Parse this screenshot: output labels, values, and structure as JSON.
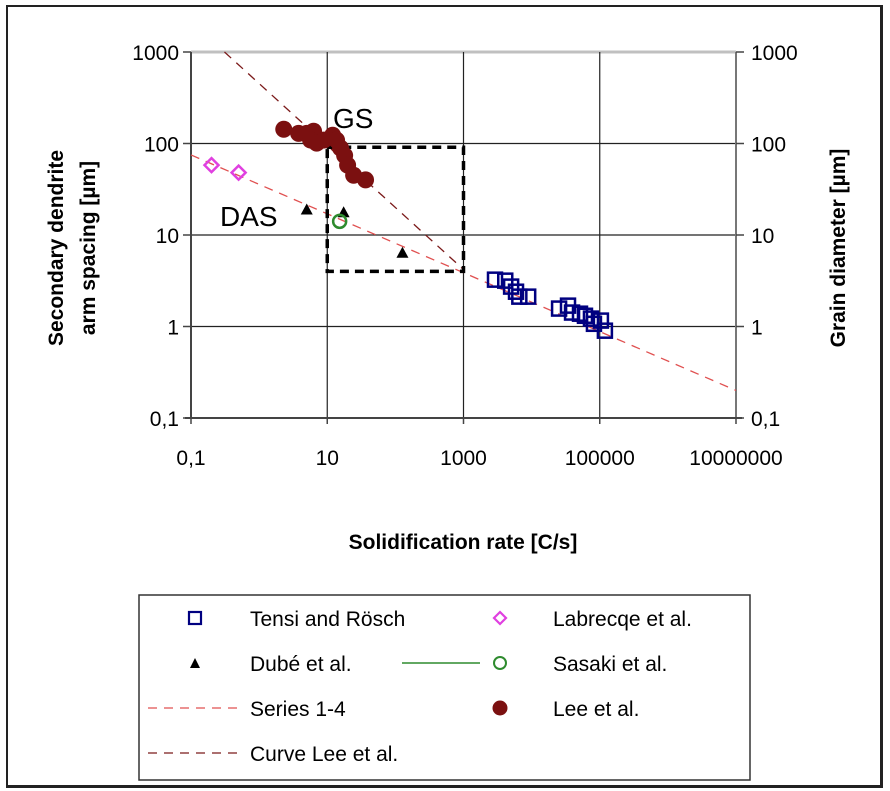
{
  "chart_data": {
    "type": "scatter",
    "title": "",
    "xlabel": "Solidification rate [C/s]",
    "ylabel": "Secondary dendrite arm spacing [µm]",
    "ylabel_lines": [
      "Secondary dendrite",
      "arm spacing [µm]"
    ],
    "y2label": "Grain diameter [µm]",
    "xscale": "log",
    "yscale": "log",
    "xlim": [
      0.1,
      10000000
    ],
    "ylim": [
      0.1,
      1000
    ],
    "x_ticks": [
      0.1,
      10,
      1000,
      100000,
      10000000
    ],
    "x_tick_labels": [
      "0,1",
      "10",
      "1000",
      "100000",
      "10000000"
    ],
    "y_ticks": [
      0.1,
      1,
      10,
      100,
      1000
    ],
    "y_tick_labels": [
      "0,1",
      "1",
      "10",
      "100",
      "1000"
    ],
    "y2_tick_labels": [
      "0,1",
      "1",
      "10",
      "100",
      "1000"
    ],
    "grid": true,
    "legend_position": "bottom",
    "annotations": [
      {
        "text": "GS",
        "x": 11,
        "y": 150
      },
      {
        "text": "DAS",
        "x": 0.9,
        "y": 15
      }
    ],
    "highlight_box": {
      "x": [
        10,
        1000
      ],
      "y": [
        4,
        91
      ],
      "style": "dashed"
    },
    "series": [
      {
        "name": "Tensi and Rösch",
        "marker": "square-open",
        "color": "#000080",
        "x": [
          2900,
          4100,
          5000,
          5900,
          6600,
          8900,
          25300,
          34200,
          39200,
          51300,
          60700,
          74300,
          82200,
          104000,
          119000
        ],
        "y": [
          3.25,
          3.17,
          2.73,
          2.4,
          2.12,
          2.12,
          1.57,
          1.69,
          1.42,
          1.38,
          1.31,
          1.22,
          1.07,
          1.16,
          0.9
        ]
      },
      {
        "name": "Labrecqe et al.",
        "marker": "diamond-open",
        "color": "#e040e0",
        "x": [
          0.2,
          0.5
        ],
        "y": [
          58,
          48
        ]
      },
      {
        "name": "Dubé et al.",
        "marker": "triangle-filled",
        "color": "#000000",
        "x": [
          5.0,
          17.4,
          127
        ],
        "y": [
          19,
          17.7,
          6.4
        ]
      },
      {
        "name": "Sasaki et al.",
        "marker": "circle-open",
        "color": "#2e8b2e",
        "x": [
          15.2
        ],
        "y": [
          14.1
        ]
      },
      {
        "name": "Series 1-4",
        "marker": "dashed-line",
        "color": "#e05050",
        "x": [
          0.1,
          10000000
        ],
        "y": [
          75,
          0.2
        ]
      },
      {
        "name": "Lee et al.",
        "marker": "circle-filled",
        "color": "#7b1010",
        "x": [
          2.3,
          3.8,
          5.0,
          6.3,
          5.7,
          7.0,
          8.9,
          12,
          13.7,
          15.7,
          18,
          19.9,
          24.4,
          36.5
        ],
        "y": [
          143,
          129,
          129,
          136,
          109,
          101,
          109,
          123,
          109,
          89,
          74,
          58,
          45,
          40
        ]
      },
      {
        "name": "Curve Lee et al.",
        "marker": "dashed-line",
        "color": "#7b1a1a",
        "x": [
          0.31,
          1000
        ],
        "y": [
          1000,
          4.2
        ]
      }
    ],
    "legend": [
      {
        "label": "Tensi and Rösch",
        "symbol": "square-open",
        "color": "#000080"
      },
      {
        "label": "Labrecqe et al.",
        "symbol": "diamond-open",
        "color": "#e040e0"
      },
      {
        "label": "Dubé et al.",
        "symbol": "triangle-filled",
        "color": "#000000"
      },
      {
        "label": "Sasaki et al.",
        "symbol": "line-circle-open",
        "color": "#2e8b2e"
      },
      {
        "label": "Series 1-4",
        "symbol": "dashed-line",
        "color": "#e05050"
      },
      {
        "label": "Lee et al.",
        "symbol": "circle-filled",
        "color": "#7b1010"
      },
      {
        "label": "Curve Lee et al.",
        "symbol": "dashed-line",
        "color": "#7b1a1a"
      }
    ]
  }
}
